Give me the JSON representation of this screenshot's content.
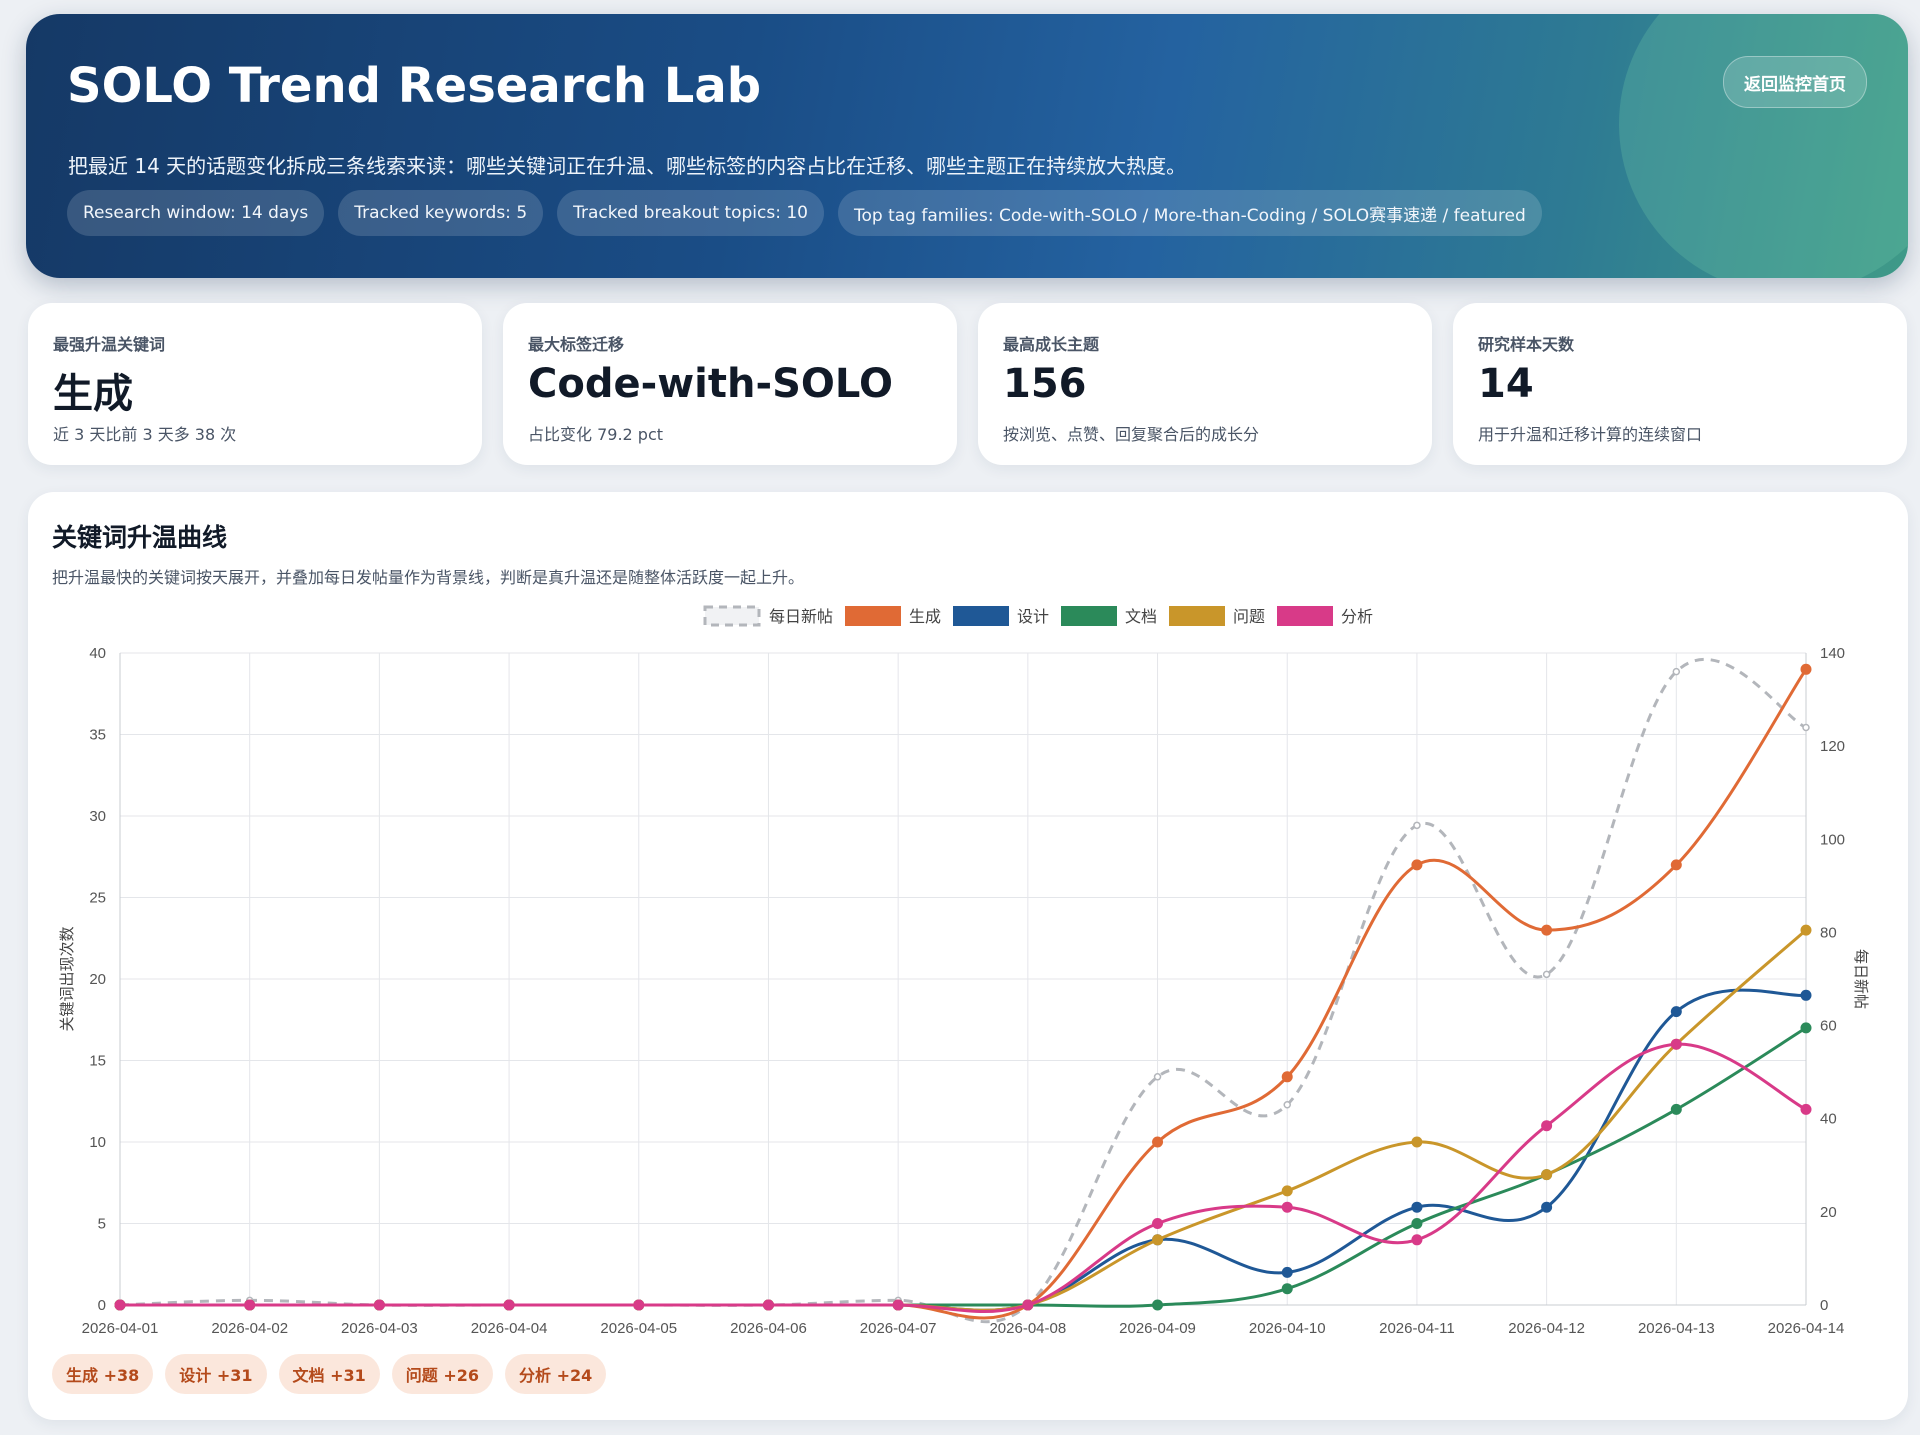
{
  "hero": {
    "title": "SOLO Trend Research Lab",
    "description": "把最近 14 天的话题变化拆成三条线索来读：哪些关键词正在升温、哪些标签的内容占比在迁移、哪些主题正在持续放大热度。",
    "back_button": "返回监控首页",
    "pills": [
      "Research window: 14 days",
      "Tracked keywords: 5",
      "Tracked breakout topics: 10",
      "Top tag families: Code-with-SOLO / More-than-Coding / SOLO赛事速递 / featured"
    ]
  },
  "cards": [
    {
      "label": "最强升温关键词",
      "value": "生成",
      "sub": "近 3 天比前 3 天多 38 次"
    },
    {
      "label": "最大标签迁移",
      "value": "Code-with-SOLO",
      "sub": "占比变化 79.2 pct"
    },
    {
      "label": "最高成长主题",
      "value": "156",
      "sub": "按浏览、点赞、回复聚合后的成长分"
    },
    {
      "label": "研究样本天数",
      "value": "14",
      "sub": "用于升温和迁移计算的连续窗口"
    }
  ],
  "panel": {
    "title": "关键词升温曲线",
    "description": "把升温最快的关键词按天展开，并叠加每日发帖量作为背景线，判断是真升温还是随整体活跃度一起上升。"
  },
  "deltas": [
    "生成 +38",
    "设计 +31",
    "文档 +31",
    "问题 +26",
    "分析 +24"
  ],
  "chart_data": {
    "type": "line",
    "x": [
      "2026-04-01",
      "2026-04-02",
      "2026-04-03",
      "2026-04-04",
      "2026-04-05",
      "2026-04-06",
      "2026-04-07",
      "2026-04-08",
      "2026-04-09",
      "2026-04-10",
      "2026-04-11",
      "2026-04-12",
      "2026-04-13",
      "2026-04-14"
    ],
    "ylabel": "关键词出现次数",
    "y2label": "每日新帖",
    "ylim": [
      0,
      40
    ],
    "y2lim": [
      0,
      140
    ],
    "yticks": [
      0,
      5,
      10,
      15,
      20,
      25,
      30,
      35,
      40
    ],
    "y2ticks": [
      0,
      20,
      40,
      60,
      80,
      100,
      120,
      140
    ],
    "grid": true,
    "legend": "top-center",
    "series": [
      {
        "name": "每日新帖",
        "axis": "right",
        "dashed": true,
        "color": "#b3b6bb",
        "values": [
          0,
          1,
          0,
          0,
          0,
          0,
          1,
          0,
          49,
          43,
          103,
          71,
          136,
          124
        ]
      },
      {
        "name": "生成",
        "axis": "left",
        "color": "#e06a35",
        "values": [
          0,
          0,
          0,
          0,
          0,
          0,
          0,
          0,
          10,
          14,
          27,
          23,
          27,
          39
        ]
      },
      {
        "name": "设计",
        "axis": "left",
        "color": "#1f5896",
        "values": [
          0,
          0,
          0,
          0,
          0,
          0,
          0,
          0,
          4,
          2,
          6,
          6,
          18,
          19
        ]
      },
      {
        "name": "文档",
        "axis": "left",
        "color": "#2b8a5a",
        "values": [
          0,
          0,
          0,
          0,
          0,
          0,
          0,
          0,
          0,
          1,
          5,
          8,
          12,
          17
        ]
      },
      {
        "name": "问题",
        "axis": "left",
        "color": "#c9962a",
        "values": [
          0,
          0,
          0,
          0,
          0,
          0,
          0,
          0,
          4,
          7,
          10,
          8,
          16,
          23
        ]
      },
      {
        "name": "分析",
        "axis": "left",
        "color": "#d83a88",
        "values": [
          0,
          0,
          0,
          0,
          0,
          0,
          0,
          0,
          5,
          6,
          4,
          11,
          16,
          12
        ]
      }
    ]
  }
}
